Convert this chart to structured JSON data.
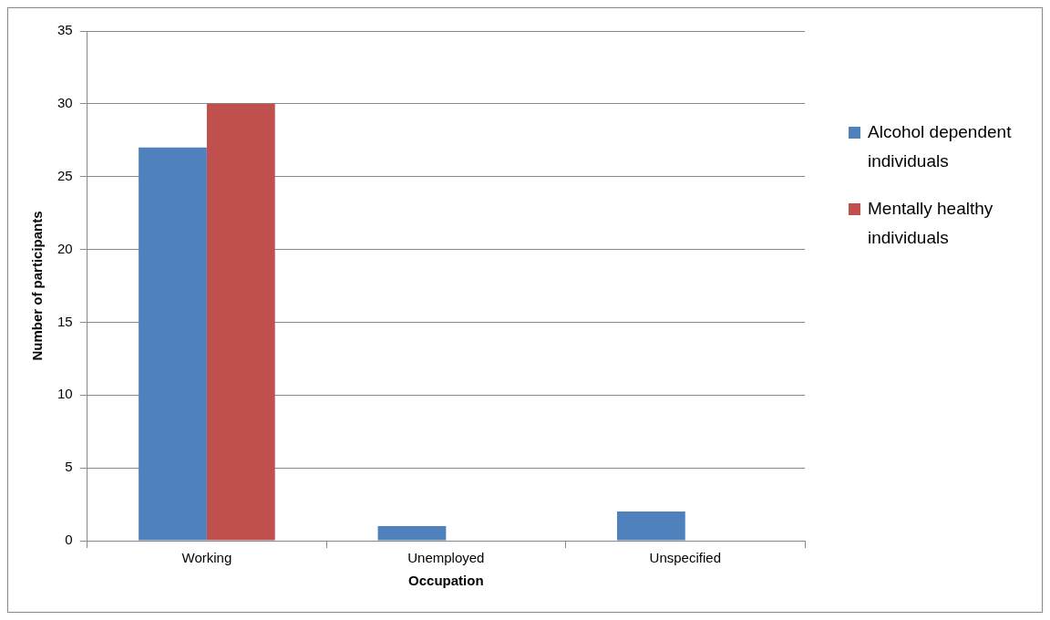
{
  "chart_data": {
    "type": "bar",
    "xlabel": "Occupation",
    "ylabel": "Number of participants",
    "categories": [
      "Working",
      "Unemployed",
      "Unspecified"
    ],
    "series": [
      {
        "name": "Alcohol dependent individuals",
        "color": "#4f81bd",
        "values": [
          27,
          1,
          2
        ]
      },
      {
        "name": "Mentally healthy individuals",
        "color": "#c0504d",
        "values": [
          30,
          0,
          0
        ]
      }
    ],
    "ylim": [
      0,
      35
    ],
    "yticks": [
      0,
      5,
      10,
      15,
      20,
      25,
      30,
      35
    ],
    "grid": "y",
    "legend": "right"
  }
}
